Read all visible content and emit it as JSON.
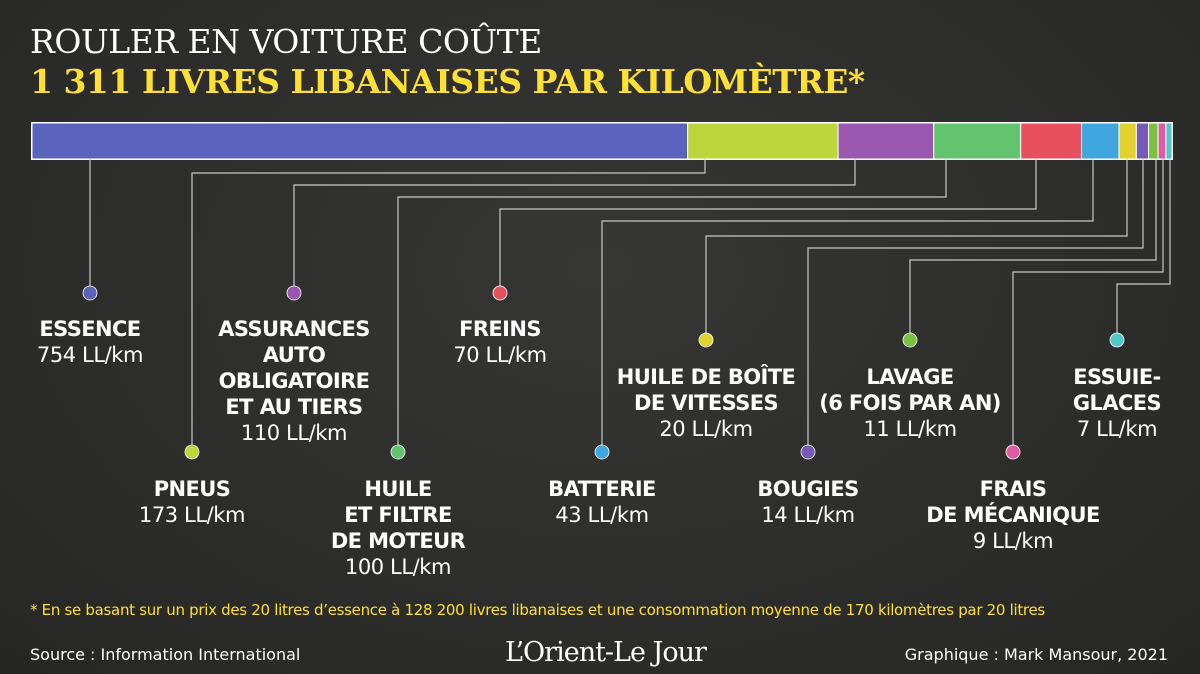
{
  "header": {
    "line1": "ROULER EN VOITURE COÛTE",
    "line2": "1 311 LIVRES LIBANAISES PAR KILOMÈTRE*"
  },
  "chart_data": {
    "type": "bar",
    "orientation": "horizontal-stacked",
    "title": "ROULER EN VOITURE COÛTE 1 311 LIVRES LIBANAISES PAR KILOMÈTRE*",
    "unit": "LL/km",
    "total": 1311,
    "segments": [
      {
        "name_lines": [
          "ESSENCE"
        ],
        "value": 754,
        "value_label": "754 LL/km",
        "color": "#5b64bc"
      },
      {
        "name_lines": [
          "PNEUS"
        ],
        "value": 173,
        "value_label": "173 LL/km",
        "color": "#bcd63b"
      },
      {
        "name_lines": [
          "ASSURANCES",
          "AUTO",
          "OBLIGATOIRE",
          "ET AU TIERS"
        ],
        "value": 110,
        "value_label": "110 LL/km",
        "color": "#9b56b0"
      },
      {
        "name_lines": [
          "HUILE",
          "ET FILTRE",
          "DE MOTEUR"
        ],
        "value": 100,
        "value_label": "100 LL/km",
        "color": "#62c46d"
      },
      {
        "name_lines": [
          "FREINS"
        ],
        "value": 70,
        "value_label": "70 LL/km",
        "color": "#e8505f"
      },
      {
        "name_lines": [
          "BATTERIE"
        ],
        "value": 43,
        "value_label": "43 LL/km",
        "color": "#3fa6e0"
      },
      {
        "name_lines": [
          "HUILE DE BOÎTE",
          "DE VITESSES"
        ],
        "value": 20,
        "value_label": "20 LL/km",
        "color": "#e2d22f"
      },
      {
        "name_lines": [
          "BOUGIES"
        ],
        "value": 14,
        "value_label": "14 LL/km",
        "color": "#7459b6"
      },
      {
        "name_lines": [
          "LAVAGE",
          "(6 FOIS PAR AN)"
        ],
        "value": 11,
        "value_label": "11 LL/km",
        "color": "#7cc242"
      },
      {
        "name_lines": [
          "FRAIS",
          "DE MÉCANIQUE"
        ],
        "value": 9,
        "value_label": "9 LL/km",
        "color": "#e05aa6"
      },
      {
        "name_lines": [
          "ESSUIE-",
          "GLACES"
        ],
        "value": 7,
        "value_label": "7 LL/km",
        "color": "#4fc8c9"
      }
    ]
  },
  "footnote": "* En se basant sur un prix des 20 litres d’essence à 128 200 livres libanaises et une consommation moyenne de 170 kilomètres par 20 litres",
  "source": "Source : Information International",
  "logo": "L’Orient-Le Jour",
  "credit": "Graphique : Mark Mansour, 2021"
}
